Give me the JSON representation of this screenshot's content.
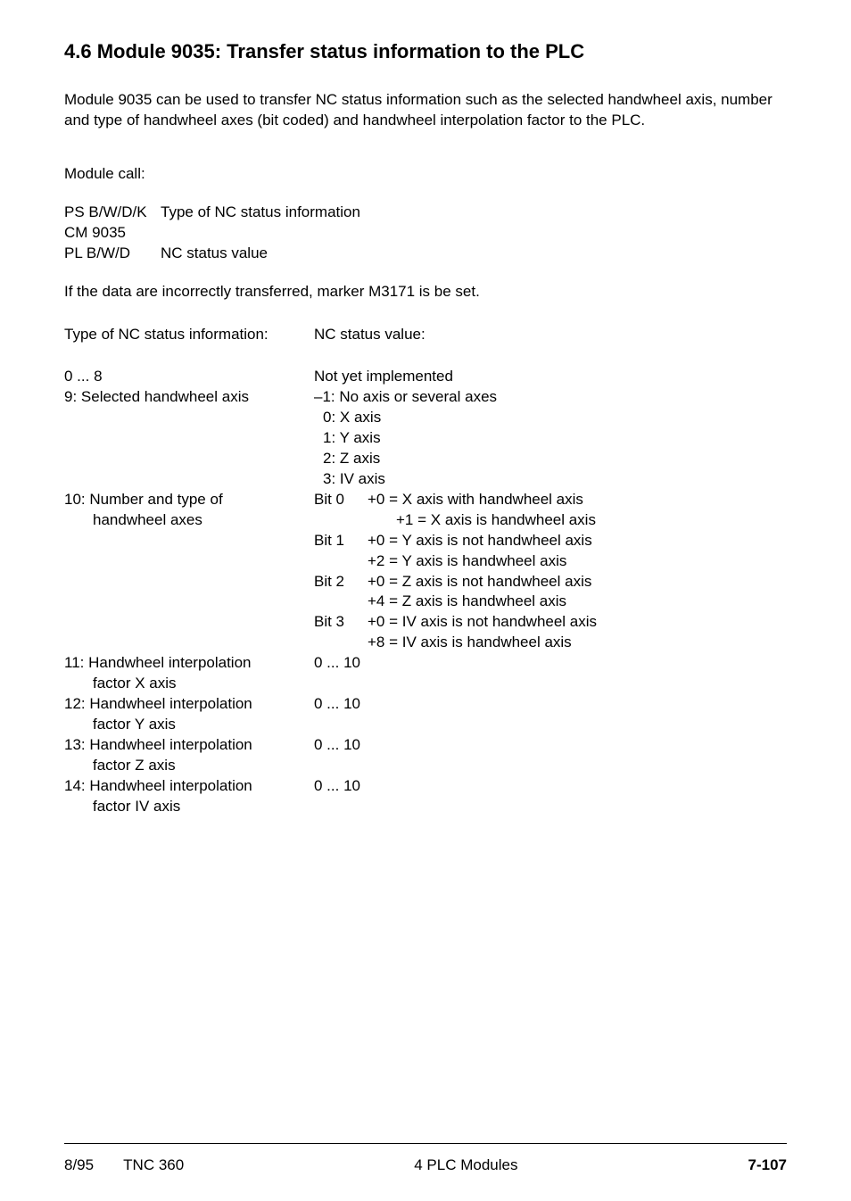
{
  "heading": "4.6 Module 9035: Transfer status information to the PLC",
  "intro": "Module 9035 can be used to transfer NC status information such as the selected handwheel axis, number and type of handwheel axes (bit coded) and handwheel interpolation factor to the PLC.",
  "module_call_label": "Module call:",
  "call": {
    "r1c1": "PS B/W/D/K",
    "r1c2": "Type of NC status information",
    "r2c1": "CM 9035",
    "r2c2": "",
    "r3c1": "PL B/W/D",
    "r3c2": "NC status value"
  },
  "marker_note": "If the data are incorrectly transferred, marker M3171 is be set.",
  "headers": {
    "left": "Type of NC status information:",
    "right": "NC status value:"
  },
  "rows": {
    "r0_left": "0 ... 8",
    "r0_right": "Not yet implemented",
    "r9_left": "9: Selected handwheel axis",
    "r9_right_a": "–1: No axis or several axes",
    "r9_right_b": "0: X axis",
    "r9_right_c": "1: Y axis",
    "r9_right_d": "2: Z axis",
    "r9_right_e": "3: IV axis",
    "r10_left_a": "10: Number and type of",
    "r10_left_b": "handwheel axes",
    "bit0_label": "Bit 0",
    "bit0_a": "+0 = X axis with handwheel axis",
    "bit0_b": "+1 = X axis is handwheel axis",
    "bit1_label": "Bit 1",
    "bit1_a": "+0 = Y axis is not handwheel axis",
    "bit1_b": "+2 = Y axis is handwheel axis",
    "bit2_label": "Bit 2",
    "bit2_a": "+0 = Z axis is not handwheel axis",
    "bit2_b": "+4 = Z axis is handwheel axis",
    "bit3_label": "Bit 3",
    "bit3_a": "+0 = IV axis is not handwheel axis",
    "bit3_b": "+8 = IV axis is handwheel axis",
    "r11_left_a": "11: Handwheel interpolation",
    "r11_left_b": "factor X axis",
    "r11_right": "0 ... 10",
    "r12_left_a": "12: Handwheel interpolation",
    "r12_left_b": "factor Y axis",
    "r12_right": "0 ... 10",
    "r13_left_a": "13: Handwheel interpolation",
    "r13_left_b": "factor Z axis",
    "r13_right": "0 ... 10",
    "r14_left_a": "14: Handwheel interpolation",
    "r14_left_b": "factor IV axis",
    "r14_right": "0 ... 10"
  },
  "footer": {
    "left_date": "8/95",
    "left_model": "TNC 360",
    "center": "4  PLC Modules",
    "right": "7-107"
  }
}
